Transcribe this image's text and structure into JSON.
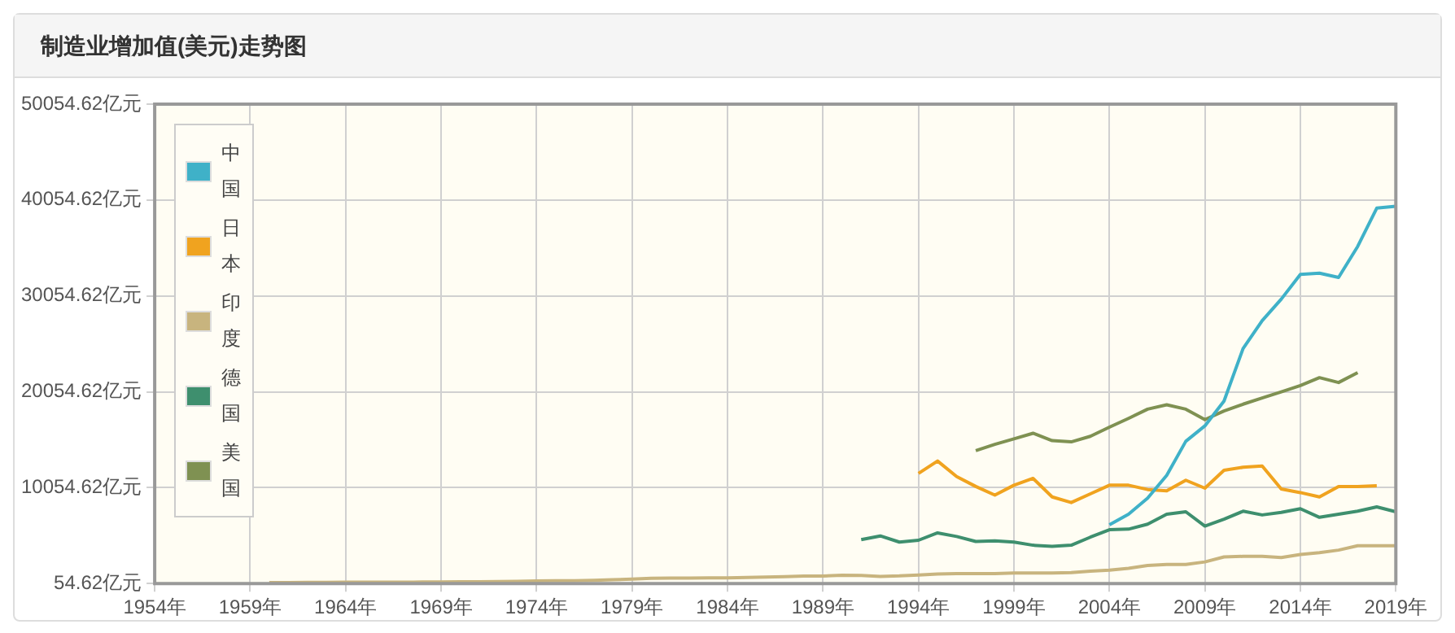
{
  "chart_data": {
    "type": "line",
    "title": "制造业增加值(美元)走势图",
    "xlim": [
      1954,
      2019
    ],
    "xticks": [
      {
        "value": 1954,
        "label": "1954年"
      },
      {
        "value": 1959,
        "label": "1959年"
      },
      {
        "value": 1964,
        "label": "1964年"
      },
      {
        "value": 1969,
        "label": "1969年"
      },
      {
        "value": 1974,
        "label": "1974年"
      },
      {
        "value": 1979,
        "label": "1979年"
      },
      {
        "value": 1984,
        "label": "1984年"
      },
      {
        "value": 1989,
        "label": "1989年"
      },
      {
        "value": 1994,
        "label": "1994年"
      },
      {
        "value": 1999,
        "label": "1999年"
      },
      {
        "value": 2004,
        "label": "2004年"
      },
      {
        "value": 2009,
        "label": "2009年"
      },
      {
        "value": 2014,
        "label": "2014年"
      },
      {
        "value": 2019,
        "label": "2019年"
      }
    ],
    "ylim": [
      54.62,
      50054.62
    ],
    "yticks": [
      {
        "value": 54.62,
        "label": "54.62亿元"
      },
      {
        "value": 10054.62,
        "label": "10054.62亿元"
      },
      {
        "value": 20054.62,
        "label": "20054.62亿元"
      },
      {
        "value": 30054.62,
        "label": "30054.62亿元"
      },
      {
        "value": 40054.62,
        "label": "40054.62亿元"
      },
      {
        "value": 50054.62,
        "label": "50054.62亿元"
      }
    ],
    "grid": true,
    "legend": "top left",
    "marker": "none",
    "line_style": "solid",
    "series": [
      {
        "name": "中国",
        "color": "#3fb1c8",
        "x": [
          2004,
          2005,
          2006,
          2007,
          2008,
          2009,
          2010,
          2011,
          2012,
          2013,
          2014,
          2015,
          2016,
          2017,
          2018,
          2019
        ],
        "values": [
          6180,
          7280,
          8960,
          11340,
          14890,
          16500,
          19080,
          24570,
          27470,
          29720,
          32300,
          32430,
          31980,
          35210,
          39210,
          39400
        ]
      },
      {
        "name": "日本",
        "color": "#f0a31f",
        "x": [
          1994,
          1995,
          1996,
          1997,
          1998,
          1999,
          2000,
          2001,
          2002,
          2003,
          2004,
          2005,
          2006,
          2007,
          2008,
          2009,
          2010,
          2011,
          2012,
          2013,
          2014,
          2015,
          2016,
          2017,
          2018
        ],
        "values": [
          11540,
          12830,
          11210,
          10180,
          9280,
          10310,
          11020,
          9090,
          8500,
          9410,
          10310,
          10310,
          9860,
          9730,
          10830,
          10000,
          11860,
          12180,
          12310,
          9920,
          9540,
          9090,
          10180,
          10180,
          10250
        ]
      },
      {
        "name": "印度",
        "color": "#c8b47e",
        "x": [
          1960,
          1961,
          1962,
          1963,
          1964,
          1965,
          1966,
          1967,
          1968,
          1969,
          1970,
          1971,
          1972,
          1973,
          1974,
          1975,
          1976,
          1977,
          1978,
          1979,
          1980,
          1981,
          1982,
          1983,
          1984,
          1985,
          1986,
          1987,
          1988,
          1989,
          1990,
          1991,
          1992,
          1993,
          1994,
          1995,
          1996,
          1997,
          1998,
          1999,
          2000,
          2001,
          2002,
          2003,
          2004,
          2005,
          2006,
          2007,
          2008,
          2009,
          2010,
          2011,
          2012,
          2013,
          2014,
          2015,
          2016,
          2017,
          2018,
          2019
        ],
        "values": [
          150,
          160,
          170,
          180,
          190,
          200,
          190,
          200,
          210,
          230,
          240,
          250,
          260,
          290,
          330,
          340,
          350,
          400,
          450,
          520,
          600,
          620,
          630,
          650,
          640,
          680,
          720,
          770,
          830,
          840,
          930,
          900,
          800,
          850,
          950,
          1050,
          1100,
          1100,
          1100,
          1150,
          1150,
          1150,
          1200,
          1350,
          1450,
          1650,
          1930,
          2050,
          2050,
          2310,
          2830,
          2890,
          2890,
          2760,
          3090,
          3280,
          3540,
          3990,
          3990,
          3990
        ]
      },
      {
        "name": "德国",
        "color": "#3e8f6e",
        "x": [
          1991,
          1992,
          1993,
          1994,
          1995,
          1996,
          1997,
          1998,
          1999,
          2000,
          2001,
          2002,
          2003,
          2004,
          2005,
          2006,
          2007,
          2008,
          2009,
          2010,
          2011,
          2012,
          2013,
          2014,
          2015,
          2016,
          2017,
          2018,
          2019
        ],
        "values": [
          4640,
          5020,
          4380,
          4570,
          5340,
          4960,
          4440,
          4500,
          4380,
          4050,
          3930,
          4050,
          4890,
          5670,
          5730,
          6250,
          7280,
          7540,
          6050,
          6760,
          7600,
          7210,
          7470,
          7860,
          6960,
          7280,
          7600,
          8050,
          7540
        ]
      },
      {
        "name": "美国",
        "color": "#7f9152",
        "x": [
          1997,
          1998,
          1999,
          2000,
          2001,
          2002,
          2003,
          2004,
          2005,
          2006,
          2007,
          2008,
          2009,
          2010,
          2011,
          2012,
          2013,
          2014,
          2015,
          2016,
          2017
        ],
        "values": [
          13920,
          14570,
          15150,
          15730,
          14960,
          14830,
          15410,
          16370,
          17280,
          18240,
          18700,
          18240,
          17150,
          18050,
          18760,
          19410,
          20050,
          20700,
          21530,
          21020,
          22050
        ]
      }
    ]
  }
}
